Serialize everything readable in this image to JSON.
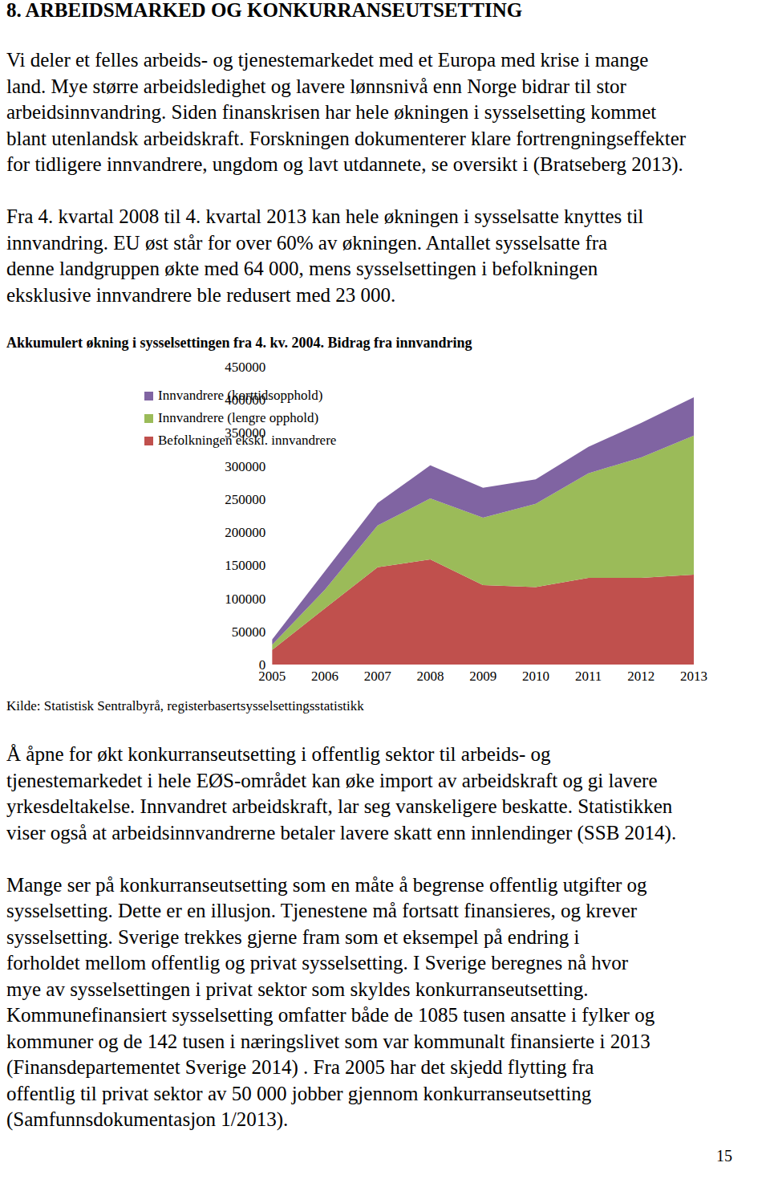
{
  "heading": "8. ARBEIDSMARKED OG KONKURRANSEUTSETTING",
  "paragraphs_top": [
    [
      "Vi deler et felles arbeids- og tjenestemarkedet med et Europa med krise i mange",
      "land. Mye større arbeidsledighet og lavere lønnsnivå enn Norge bidrar til stor",
      "arbeidsinnvandring. Siden finanskrisen har hele økningen i sysselsetting kommet",
      "blant utenlandsk arbeidskraft. Forskningen dokumenterer klare fortrengningseffekter",
      "for tidligere innvandrere, ungdom og lavt utdannete, se oversikt i (Bratseberg 2013)."
    ],
    [
      "Fra 4. kvartal 2008 til 4. kvartal 2013 kan hele økningen i sysselsatte knyttes til",
      "innvandring. EU øst står for over 60% av økningen. Antallet sysselsatte fra",
      "denne landgruppen økte med 64 000, mens sysselsettingen i befolkningen",
      "eksklusive innvandrere ble redusert med 23 000."
    ]
  ],
  "chart_data": {
    "type": "area",
    "title": "Akkumulert økning i sysselsettingen fra 4. kv. 2004. Bidrag fra innvandring",
    "categories": [
      "2005",
      "2006",
      "2007",
      "2008",
      "2009",
      "2010",
      "2011",
      "2012",
      "2013"
    ],
    "series": [
      {
        "name": "Innvandrere (korttidsopphold)",
        "color": "#8064a2",
        "values": [
          8000,
          28000,
          34000,
          50000,
          45000,
          37000,
          40000,
          52000,
          58000
        ]
      },
      {
        "name": "Innvandrere (lengre opphold)",
        "color": "#9bbb59",
        "values": [
          8000,
          28000,
          63000,
          92000,
          102000,
          126000,
          158000,
          182000,
          210000
        ]
      },
      {
        "name": "Befolkningen ekskl. innvandrere",
        "color": "#c0504d",
        "values": [
          22000,
          85000,
          147000,
          159000,
          120000,
          117000,
          131000,
          131000,
          136000
        ]
      }
    ],
    "ylim": [
      0,
      450000
    ],
    "yticks": [
      0,
      50000,
      100000,
      150000,
      200000,
      250000,
      300000,
      350000,
      400000,
      450000
    ],
    "stacked": true,
    "grid": false,
    "legend": "upper left"
  },
  "source": "Kilde: Statistisk Sentralbyrå, registerbasertsysselsettingsstatistikk",
  "paragraphs_bottom": [
    [
      "Å åpne for økt konkurranseutsetting i offentlig sektor til arbeids- og",
      "tjenestemarkedet i hele EØS-området kan øke import av arbeidskraft og gi lavere",
      "yrkesdeltakelse. Innvandret arbeidskraft, lar seg vanskeligere beskatte. Statistikken",
      "viser også at arbeidsinnvandrerne betaler lavere skatt enn innlendinger (SSB 2014)."
    ],
    [
      "Mange ser på konkurranseutsetting som en måte å begrense offentlig utgifter og",
      "sysselsetting. Dette er en illusjon. Tjenestene må fortsatt finansieres, og krever",
      "sysselsetting. Sverige trekkes gjerne fram som et eksempel på endring i",
      "forholdet mellom offentlig og privat sysselsetting. I Sverige beregnes nå hvor",
      "mye av sysselsettingen i privat sektor som skyldes konkurranseutsetting.",
      "Kommunefinansiert sysselsetting omfatter både de 1085 tusen ansatte i fylker og",
      "kommuner og de 142 tusen i næringslivet som var kommunalt finansierte i 2013",
      "(Finansdepartementet Sverige 2014) . Fra 2005 har det skjedd flytting fra",
      "offentlig til privat sektor av 50 000 jobber gjennom konkurranseutsetting",
      "(Samfunnsdokumentasjon 1/2013)."
    ]
  ],
  "page_number": 15
}
